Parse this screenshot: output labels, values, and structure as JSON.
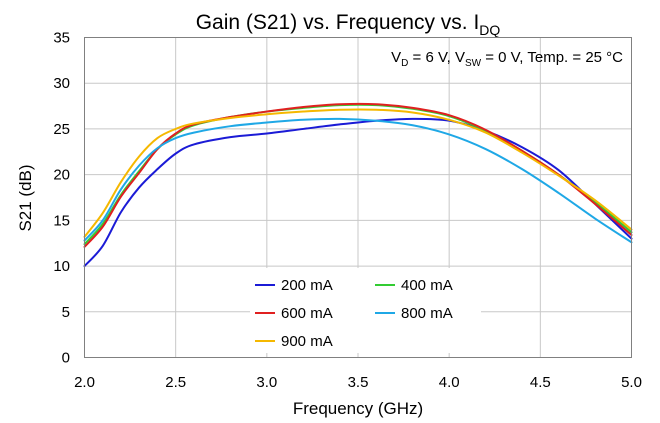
{
  "chart_data": {
    "type": "line",
    "title": {
      "main": "Gain (S21) vs. Frequency vs. I",
      "sub": "DQ"
    },
    "annotation": {
      "p1": "V",
      "s1": "D",
      "p2": " = 6 V, V",
      "s2": "SW",
      "p3": " = 0 V, Temp. = 25 °C"
    },
    "xlabel": "Frequency (GHz)",
    "ylabel": "S21 (dB)",
    "xlim": [
      2.0,
      5.0
    ],
    "ylim": [
      0,
      35
    ],
    "xticks": [
      "2.0",
      "2.5",
      "3.0",
      "3.5",
      "4.0",
      "4.5",
      "5.0"
    ],
    "yticks": [
      "0",
      "5",
      "10",
      "15",
      "20",
      "25",
      "30",
      "35"
    ],
    "xtick_values": [
      2.0,
      2.5,
      3.0,
      3.5,
      4.0,
      4.5,
      5.0
    ],
    "ytick_values": [
      0,
      5,
      10,
      15,
      20,
      25,
      30,
      35
    ],
    "grid": true,
    "legend_position": "bottom-center",
    "series": [
      {
        "name": "200 mA",
        "color": "#1b1bd6",
        "x": [
          2.0,
          2.1,
          2.2,
          2.3,
          2.4,
          2.5,
          2.6,
          2.8,
          3.0,
          3.2,
          3.4,
          3.6,
          3.8,
          4.0,
          4.2,
          4.4,
          4.6,
          4.8,
          5.0
        ],
        "y": [
          10.0,
          12.2,
          15.9,
          18.6,
          20.6,
          22.3,
          23.3,
          24.1,
          24.5,
          25.0,
          25.5,
          25.9,
          26.1,
          25.9,
          24.8,
          23.0,
          20.5,
          16.8,
          13.0
        ]
      },
      {
        "name": "400 mA",
        "color": "#33cc33",
        "x": [
          2.0,
          2.1,
          2.2,
          2.3,
          2.4,
          2.5,
          2.6,
          2.8,
          3.0,
          3.2,
          3.4,
          3.6,
          3.8,
          4.0,
          4.2,
          4.4,
          4.6,
          4.8,
          5.0
        ],
        "y": [
          12.4,
          14.6,
          17.8,
          20.4,
          22.8,
          24.4,
          25.4,
          26.3,
          26.9,
          27.3,
          27.6,
          27.6,
          27.2,
          26.4,
          24.8,
          22.6,
          20.0,
          17.0,
          13.7
        ]
      },
      {
        "name": "600 mA",
        "color": "#e02020",
        "x": [
          2.0,
          2.1,
          2.2,
          2.3,
          2.4,
          2.5,
          2.6,
          2.8,
          3.0,
          3.2,
          3.4,
          3.6,
          3.8,
          4.0,
          4.2,
          4.4,
          4.6,
          4.8,
          5.0
        ],
        "y": [
          12.1,
          14.3,
          17.6,
          20.2,
          22.8,
          24.5,
          25.5,
          26.3,
          26.9,
          27.4,
          27.7,
          27.7,
          27.3,
          26.5,
          24.9,
          22.6,
          20.0,
          16.8,
          13.4
        ]
      },
      {
        "name": "800 mA",
        "color": "#1fa8e6",
        "x": [
          2.0,
          2.1,
          2.2,
          2.3,
          2.4,
          2.5,
          2.6,
          2.8,
          3.0,
          3.2,
          3.4,
          3.6,
          3.8,
          4.0,
          4.2,
          4.4,
          4.6,
          4.8,
          5.0
        ],
        "y": [
          12.8,
          15.0,
          18.4,
          21.0,
          22.9,
          24.0,
          24.6,
          25.3,
          25.7,
          26.0,
          26.1,
          25.9,
          25.4,
          24.4,
          22.8,
          20.6,
          18.0,
          15.2,
          12.6
        ]
      },
      {
        "name": "900 mA",
        "color": "#f5b800",
        "x": [
          2.0,
          2.1,
          2.2,
          2.3,
          2.4,
          2.5,
          2.6,
          2.8,
          3.0,
          3.2,
          3.4,
          3.6,
          3.8,
          4.0,
          4.2,
          4.4,
          4.6,
          4.8,
          5.0
        ],
        "y": [
          13.2,
          15.8,
          19.2,
          22.0,
          24.0,
          25.0,
          25.6,
          26.2,
          26.6,
          26.9,
          27.1,
          27.1,
          26.8,
          26.0,
          24.6,
          22.4,
          19.9,
          17.2,
          14.0
        ]
      }
    ]
  }
}
